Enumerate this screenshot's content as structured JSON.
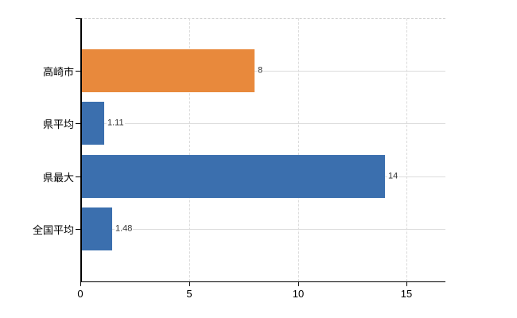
{
  "chart_data": {
    "type": "bar",
    "orientation": "horizontal",
    "title": "",
    "xlabel": "",
    "ylabel": "",
    "categories": [
      "高崎市",
      "県平均",
      "県最大",
      "全国平均"
    ],
    "values": [
      8,
      1.11,
      14,
      1.48
    ],
    "data_labels": [
      "8",
      "1.11",
      "14",
      "1.48"
    ],
    "series_colors": [
      "#E8893C",
      "#3B6FAE",
      "#3B6FAE",
      "#3B6FAE"
    ],
    "x_ticks": [
      0,
      5,
      10,
      15
    ],
    "x_tick_labels": [
      "0",
      "5",
      "10",
      "15"
    ],
    "xlim": [
      0,
      16.8
    ],
    "grid": true,
    "grid_color": "#DCDCDC",
    "axis_color": "#000000",
    "legend_position": "none",
    "background_color": "#FFFFFF"
  }
}
